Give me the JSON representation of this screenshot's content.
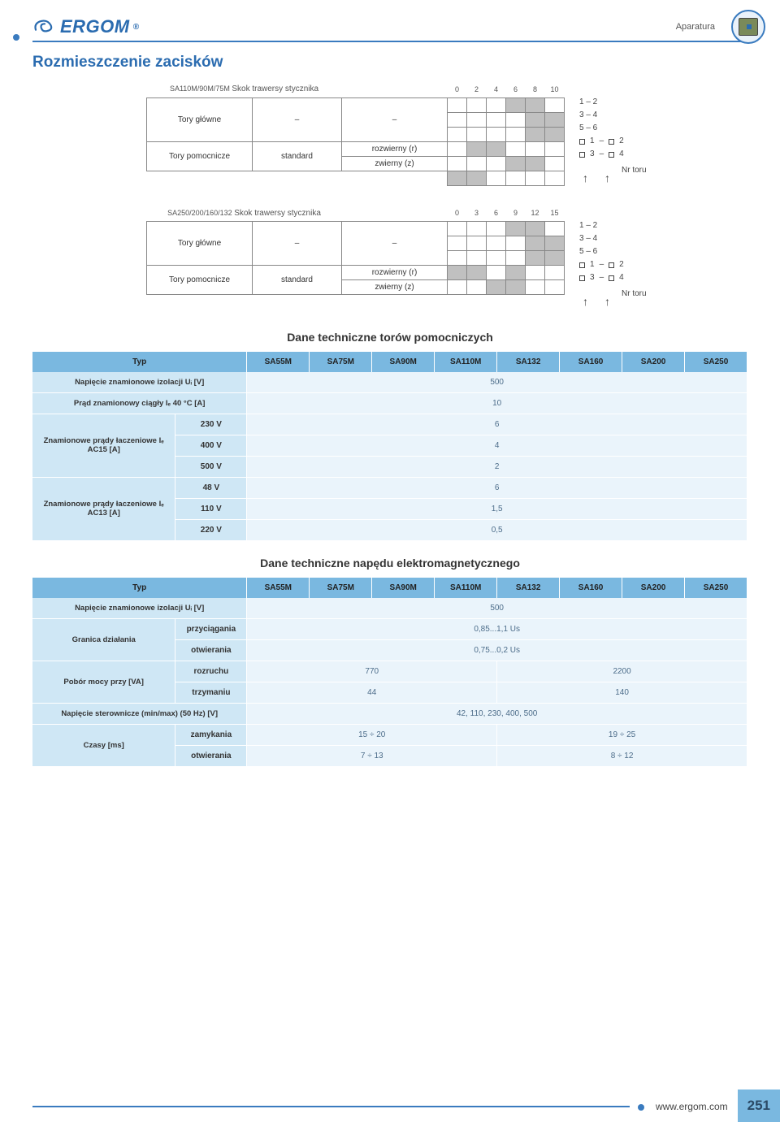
{
  "brand": "ERGOM",
  "registered": "®",
  "category": "Aparatura",
  "page_number": "251",
  "footer_url": "www.ergom.com",
  "section_title": "Rozmieszczenie zacisków",
  "sub_title_aux": "Dane techniczne torów pomocniczych",
  "sub_title_drive": "Dane techniczne napędu elektromagnetycznego",
  "colors": {
    "header_blue": "#7ab8e0",
    "row_label_blue": "#cfe7f5",
    "row_value_blue": "#eaf4fb",
    "brand_blue": "#2b6cb0",
    "line_blue": "#3a7bbf"
  },
  "term1": {
    "title": "SA110M/90M/75M",
    "subtitle": "Skok trawersy stycznika",
    "scale": [
      "0",
      "2",
      "4",
      "6",
      "8",
      "10"
    ],
    "row_main": "Tory główne",
    "row_aux": "Tory pomocnicze",
    "row_aux_val": "standard",
    "type_r": "rozwierny (r)",
    "type_z": "zwierny (z)",
    "legend": {
      "l1": "1   –   2",
      "l2": "3   –   4",
      "l3": "5   –   6",
      "l4a": "1",
      "l4b": "2",
      "l5a": "3",
      "l5b": "4",
      "nr": "Nr toru"
    }
  },
  "term2": {
    "title": "SA250/200/160/132",
    "subtitle": "Skok trawersy stycznika",
    "scale": [
      "0",
      "3",
      "6",
      "9",
      "12",
      "15"
    ],
    "row_main": "Tory główne",
    "row_aux": "Tory pomocnicze",
    "row_aux_val": "standard",
    "type_r": "rozwierny (r)",
    "type_z": "zwierny (z)",
    "legend": {
      "l1": "1   –   2",
      "l2": "3   –   4",
      "l3": "5   –   6",
      "l4a": "1",
      "l4b": "2",
      "l5a": "3",
      "l5b": "4",
      "nr": "Nr toru"
    }
  },
  "aux_table": {
    "headers": [
      "Typ",
      "SA55M",
      "SA75M",
      "SA90M",
      "SA110M",
      "SA132",
      "SA160",
      "SA200",
      "SA250"
    ],
    "rows": [
      {
        "label": "Napięcie znamionowe izolacji Uᵢ [V]",
        "span": 8,
        "value": "500"
      },
      {
        "label": "Prąd znamionowy ciągły Iₑ 40 °C [A]",
        "span": 8,
        "value": "10"
      },
      {
        "group": "Znamionowe prądy łaczeniowe Iₑ AC15 [A]",
        "group_span": 3,
        "sub": "230 V",
        "span": 8,
        "value": "6"
      },
      {
        "sub": "400 V",
        "span": 8,
        "value": "4"
      },
      {
        "sub": "500 V",
        "span": 8,
        "value": "2"
      },
      {
        "group": "Znamionowe prądy łaczeniowe Iₑ AC13 [A]",
        "group_span": 3,
        "sub": "48 V",
        "span": 8,
        "value": "6"
      },
      {
        "sub": "110 V",
        "span": 8,
        "value": "1,5"
      },
      {
        "sub": "220 V",
        "span": 8,
        "value": "0,5"
      }
    ]
  },
  "drive_table": {
    "headers": [
      "Typ",
      "SA55M",
      "SA75M",
      "SA90M",
      "SA110M",
      "SA132",
      "SA160",
      "SA200",
      "SA250"
    ],
    "rows": [
      {
        "label": "Napięcie znamionowe izolacji Uᵢ [V]",
        "span": 8,
        "value": "500"
      },
      {
        "group": "Granica działania",
        "group_span": 2,
        "sub": "przyciągania",
        "span": 8,
        "value": "0,85...1,1 Us"
      },
      {
        "sub": "otwierania",
        "span": 8,
        "value": "0,75...0,2 Us"
      },
      {
        "group": "Pobór mocy przy [VA]",
        "group_span": 2,
        "sub": "rozruchu",
        "cells": [
          {
            "span": 4,
            "value": "770"
          },
          {
            "span": 4,
            "value": "2200"
          }
        ]
      },
      {
        "sub": "trzymaniu",
        "cells": [
          {
            "span": 4,
            "value": "44"
          },
          {
            "span": 4,
            "value": "140"
          }
        ]
      },
      {
        "label": "Napięcie sterownicze (min/max) (50 Hz)  [V]",
        "span": 8,
        "value": "42, 110, 230, 400, 500"
      },
      {
        "group": "Czasy [ms]",
        "group_span": 2,
        "sub": "zamykania",
        "cells": [
          {
            "span": 4,
            "value": "15 ÷ 20"
          },
          {
            "span": 4,
            "value": "19 ÷ 25"
          }
        ]
      },
      {
        "sub": "otwierania",
        "cells": [
          {
            "span": 4,
            "value": "7 ÷ 13"
          },
          {
            "span": 4,
            "value": "8 ÷ 12"
          }
        ]
      }
    ]
  }
}
